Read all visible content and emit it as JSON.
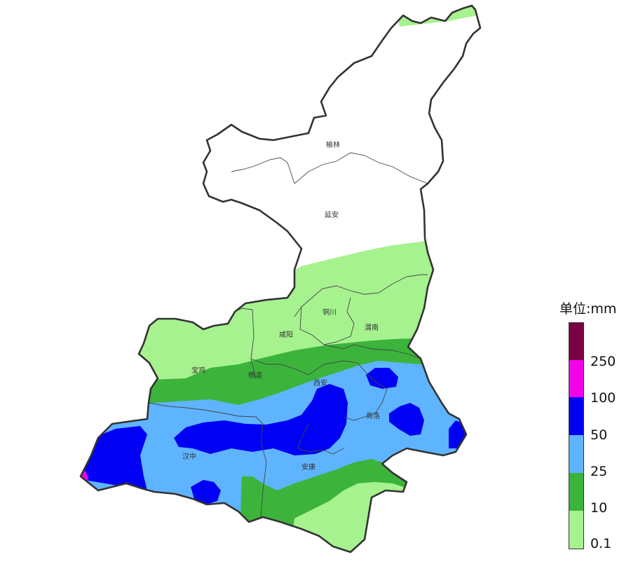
{
  "map": {
    "cities": [
      "榆林",
      "延安",
      "铜川",
      "咸阳",
      "渭南",
      "宝鸡",
      "杨凌",
      "西安",
      "商洛",
      "汉中",
      "安康"
    ]
  },
  "legend": {
    "title": "单位:mm",
    "labels": [
      "250",
      "100",
      "50",
      "25",
      "10",
      "0.1"
    ],
    "colors": [
      "#7a0043",
      "#f200e8",
      "#0000f5",
      "#5fb4ff",
      "#3cb43c",
      "#a6f28f"
    ]
  }
}
